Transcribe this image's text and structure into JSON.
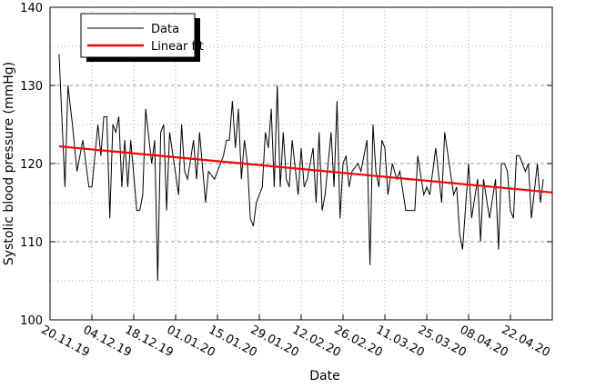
{
  "chart_data": {
    "type": "line",
    "title": "",
    "xlabel": "Date",
    "ylabel": "Systolic blood pressure (mmHg)",
    "ylim": [
      100,
      140
    ],
    "yticks": [
      100,
      110,
      120,
      130,
      140
    ],
    "xlim_days": [
      0,
      168
    ],
    "xticks": [
      {
        "day": 0,
        "label": "20.11.19"
      },
      {
        "day": 14,
        "label": "04.12.19"
      },
      {
        "day": 28,
        "label": "18.12.19"
      },
      {
        "day": 42,
        "label": "01.01.20"
      },
      {
        "day": 56,
        "label": "15.01.20"
      },
      {
        "day": 70,
        "label": "29.01.20"
      },
      {
        "day": 84,
        "label": "12.02.20"
      },
      {
        "day": 98,
        "label": "26.02.20"
      },
      {
        "day": 112,
        "label": "11.03.20"
      },
      {
        "day": 126,
        "label": "25.03.20"
      },
      {
        "day": 140,
        "label": "08.04.20"
      },
      {
        "day": 154,
        "label": "22.04.20"
      }
    ],
    "grid": true,
    "legend_position": "top-left",
    "series": [
      {
        "name": "Data",
        "color": "#000000",
        "x": [
          3,
          5,
          6,
          7.5,
          9,
          11,
          13,
          14,
          16,
          17,
          18,
          19,
          20,
          21,
          22,
          23,
          24,
          25,
          26,
          27,
          29,
          30,
          31,
          32,
          34,
          35,
          36,
          37,
          38,
          39,
          40,
          43,
          44,
          45,
          46,
          48,
          49,
          50,
          52,
          53,
          55,
          56,
          58,
          59,
          60,
          61,
          62,
          63,
          64,
          65,
          66,
          67,
          68,
          69,
          71,
          72,
          73,
          74,
          75,
          76,
          77,
          78,
          79,
          80,
          81,
          83,
          84,
          85,
          86,
          88,
          89,
          90,
          91,
          92,
          94,
          95,
          96,
          97,
          98,
          99,
          100,
          101,
          103,
          104,
          106,
          107,
          108,
          109,
          110,
          111,
          112,
          113,
          114.5,
          116,
          117,
          119,
          122,
          123,
          125,
          126,
          127,
          129,
          131,
          132,
          135,
          136,
          137,
          138,
          140,
          141,
          143,
          144,
          145,
          147,
          149,
          150,
          151,
          152,
          153,
          154,
          155,
          156,
          157,
          159,
          160,
          161,
          163,
          164,
          165
        ],
        "y": [
          134,
          117,
          130,
          125,
          119,
          123,
          117,
          117,
          125,
          121,
          126,
          126,
          113,
          125,
          124,
          126,
          117,
          123,
          117,
          123,
          114,
          114,
          116,
          127,
          120,
          123,
          105,
          124,
          125,
          114,
          124,
          116,
          125,
          119,
          118,
          123,
          118,
          124,
          115,
          119,
          118,
          119,
          121,
          123,
          123,
          128,
          122,
          127,
          118,
          123,
          120,
          113,
          112,
          115,
          117,
          124,
          122,
          127,
          117,
          130,
          117,
          124,
          118,
          117,
          123,
          116,
          122,
          117,
          118,
          122,
          115,
          124,
          114,
          116,
          124,
          117,
          128,
          113,
          120,
          121,
          117,
          119,
          120,
          119,
          123,
          107,
          125,
          119,
          117,
          123,
          122,
          116,
          120,
          118,
          119,
          114,
          114,
          121,
          116,
          117,
          116,
          122,
          115,
          124,
          116,
          117,
          111,
          109,
          120,
          113,
          118,
          110,
          118,
          113,
          118,
          109,
          120,
          120,
          119,
          114,
          113,
          121,
          121,
          119,
          120,
          113,
          120,
          115,
          118
        ]
      },
      {
        "name": "Linear fit",
        "color": "#ff0000",
        "x": [
          3,
          168
        ],
        "y": [
          122.2,
          116.3
        ]
      }
    ]
  }
}
